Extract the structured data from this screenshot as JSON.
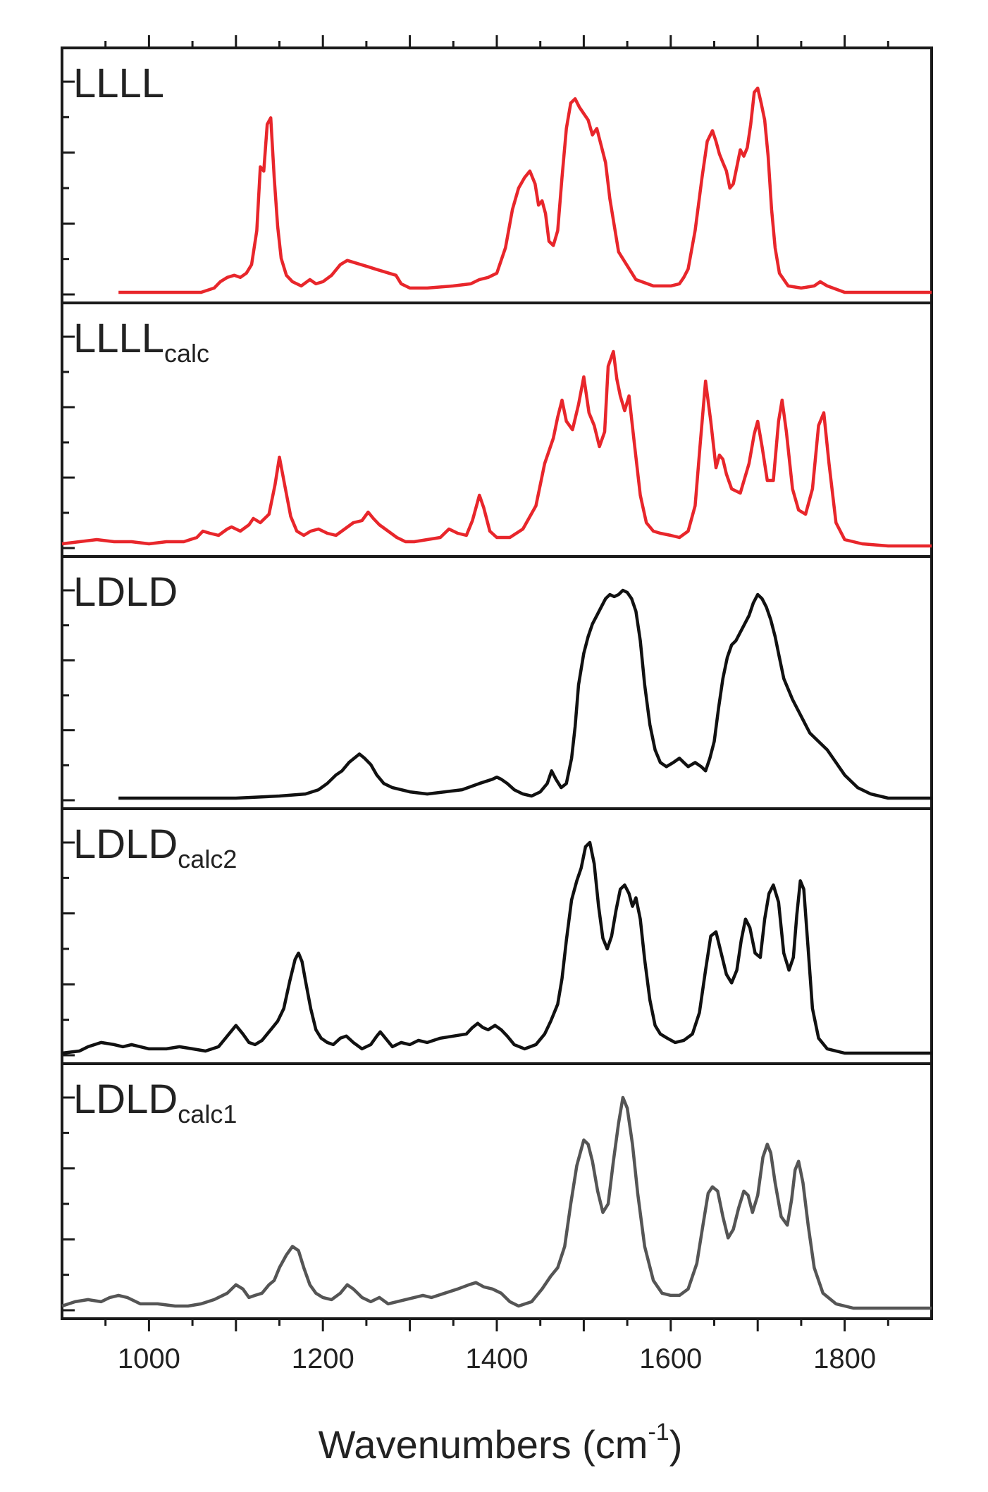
{
  "chart_data": {
    "type": "line",
    "xlabel": "Wavenumbers (cm",
    "xlabel_sup": "-1",
    "xlabel_close": ")",
    "xlim": [
      900,
      1900
    ],
    "xticks": [
      1000,
      1200,
      1400,
      1600,
      1800
    ],
    "xtick_labels": [
      "1000",
      "1200",
      "1400",
      "1600",
      "1800"
    ],
    "grid": false,
    "panels": [
      {
        "label": "LLLL",
        "sub": "",
        "color": "#e8262b",
        "ylim": [
          0,
          1
        ],
        "x": [
          965,
          1000,
          1060,
          1075,
          1082,
          1090,
          1098,
          1105,
          1112,
          1118,
          1124,
          1128,
          1132,
          1136,
          1140,
          1144,
          1148,
          1152,
          1158,
          1165,
          1175,
          1185,
          1192,
          1200,
          1210,
          1220,
          1228,
          1236,
          1244,
          1252,
          1260,
          1268,
          1276,
          1284,
          1290,
          1300,
          1320,
          1350,
          1370,
          1380,
          1390,
          1400,
          1410,
          1418,
          1425,
          1432,
          1438,
          1444,
          1448,
          1452,
          1456,
          1460,
          1465,
          1470,
          1475,
          1480,
          1485,
          1490,
          1495,
          1500,
          1505,
          1510,
          1515,
          1520,
          1525,
          1530,
          1540,
          1560,
          1580,
          1600,
          1610,
          1615,
          1620,
          1628,
          1636,
          1642,
          1648,
          1652,
          1656,
          1660,
          1664,
          1668,
          1672,
          1676,
          1680,
          1684,
          1688,
          1692,
          1696,
          1700,
          1704,
          1708,
          1712,
          1716,
          1720,
          1725,
          1735,
          1750,
          1765,
          1772,
          1780,
          1800,
          1900
        ],
        "y": [
          0.01,
          0.01,
          0.01,
          0.03,
          0.06,
          0.08,
          0.09,
          0.08,
          0.1,
          0.14,
          0.3,
          0.6,
          0.58,
          0.8,
          0.83,
          0.55,
          0.32,
          0.17,
          0.09,
          0.06,
          0.04,
          0.07,
          0.05,
          0.06,
          0.09,
          0.14,
          0.16,
          0.15,
          0.14,
          0.13,
          0.12,
          0.11,
          0.1,
          0.09,
          0.05,
          0.03,
          0.03,
          0.04,
          0.05,
          0.07,
          0.08,
          0.1,
          0.22,
          0.4,
          0.5,
          0.55,
          0.58,
          0.52,
          0.42,
          0.44,
          0.38,
          0.25,
          0.23,
          0.3,
          0.55,
          0.78,
          0.9,
          0.92,
          0.88,
          0.85,
          0.82,
          0.75,
          0.78,
          0.7,
          0.62,
          0.45,
          0.2,
          0.07,
          0.04,
          0.04,
          0.05,
          0.08,
          0.12,
          0.3,
          0.55,
          0.72,
          0.77,
          0.72,
          0.66,
          0.62,
          0.58,
          0.5,
          0.52,
          0.6,
          0.68,
          0.65,
          0.69,
          0.8,
          0.95,
          0.97,
          0.9,
          0.82,
          0.65,
          0.4,
          0.22,
          0.1,
          0.04,
          0.03,
          0.04,
          0.06,
          0.04,
          0.01,
          0.01
        ]
      },
      {
        "label": "LLLL",
        "sub": "calc",
        "color": "#e8262b",
        "ylim": [
          0,
          1
        ],
        "x": [
          900,
          920,
          940,
          960,
          980,
          1000,
          1020,
          1040,
          1055,
          1062,
          1070,
          1080,
          1090,
          1095,
          1105,
          1115,
          1120,
          1128,
          1138,
          1145,
          1150,
          1156,
          1163,
          1170,
          1178,
          1186,
          1195,
          1205,
          1215,
          1225,
          1235,
          1245,
          1252,
          1258,
          1265,
          1275,
          1285,
          1295,
          1305,
          1320,
          1335,
          1345,
          1355,
          1365,
          1372,
          1380,
          1385,
          1392,
          1400,
          1415,
          1430,
          1445,
          1455,
          1465,
          1470,
          1475,
          1480,
          1487,
          1494,
          1500,
          1506,
          1512,
          1518,
          1524,
          1528,
          1534,
          1538,
          1542,
          1547,
          1552,
          1558,
          1565,
          1572,
          1580,
          1588,
          1600,
          1610,
          1620,
          1628,
          1634,
          1640,
          1646,
          1652,
          1656,
          1660,
          1664,
          1670,
          1680,
          1690,
          1696,
          1700,
          1705,
          1711,
          1718,
          1724,
          1728,
          1733,
          1740,
          1747,
          1755,
          1763,
          1770,
          1776,
          1782,
          1790,
          1800,
          1820,
          1850,
          1900
        ],
        "y": [
          0.02,
          0.03,
          0.04,
          0.03,
          0.03,
          0.02,
          0.03,
          0.03,
          0.05,
          0.08,
          0.07,
          0.06,
          0.09,
          0.1,
          0.08,
          0.11,
          0.14,
          0.12,
          0.16,
          0.3,
          0.43,
          0.3,
          0.15,
          0.08,
          0.06,
          0.08,
          0.09,
          0.07,
          0.06,
          0.09,
          0.12,
          0.13,
          0.17,
          0.14,
          0.11,
          0.08,
          0.05,
          0.03,
          0.03,
          0.04,
          0.05,
          0.09,
          0.07,
          0.06,
          0.13,
          0.25,
          0.19,
          0.08,
          0.05,
          0.05,
          0.09,
          0.2,
          0.4,
          0.52,
          0.62,
          0.7,
          0.6,
          0.56,
          0.68,
          0.81,
          0.64,
          0.58,
          0.48,
          0.55,
          0.86,
          0.93,
          0.8,
          0.72,
          0.65,
          0.72,
          0.5,
          0.25,
          0.12,
          0.08,
          0.07,
          0.06,
          0.05,
          0.08,
          0.2,
          0.5,
          0.79,
          0.6,
          0.38,
          0.44,
          0.42,
          0.35,
          0.28,
          0.26,
          0.4,
          0.54,
          0.6,
          0.48,
          0.32,
          0.32,
          0.6,
          0.7,
          0.55,
          0.28,
          0.18,
          0.16,
          0.28,
          0.58,
          0.64,
          0.4,
          0.12,
          0.04,
          0.02,
          0.01,
          0.01
        ]
      },
      {
        "label": "LDLD",
        "sub": "",
        "color": "#111111",
        "ylim": [
          0,
          1
        ],
        "x": [
          965,
          1000,
          1050,
          1100,
          1150,
          1180,
          1195,
          1205,
          1215,
          1222,
          1230,
          1236,
          1242,
          1248,
          1255,
          1262,
          1270,
          1280,
          1290,
          1300,
          1320,
          1340,
          1360,
          1380,
          1395,
          1400,
          1405,
          1412,
          1420,
          1430,
          1440,
          1450,
          1458,
          1463,
          1468,
          1474,
          1480,
          1486,
          1490,
          1494,
          1500,
          1505,
          1510,
          1515,
          1520,
          1525,
          1530,
          1535,
          1540,
          1545,
          1550,
          1555,
          1560,
          1565,
          1570,
          1576,
          1582,
          1588,
          1595,
          1603,
          1610,
          1615,
          1620,
          1628,
          1635,
          1640,
          1645,
          1650,
          1655,
          1660,
          1665,
          1670,
          1675,
          1680,
          1685,
          1690,
          1695,
          1700,
          1705,
          1710,
          1715,
          1720,
          1725,
          1730,
          1740,
          1750,
          1760,
          1770,
          1780,
          1790,
          1800,
          1815,
          1830,
          1850,
          1900
        ],
        "y": [
          0.01,
          0.01,
          0.01,
          0.01,
          0.02,
          0.03,
          0.05,
          0.08,
          0.12,
          0.14,
          0.18,
          0.2,
          0.22,
          0.2,
          0.17,
          0.12,
          0.08,
          0.06,
          0.05,
          0.04,
          0.03,
          0.04,
          0.05,
          0.08,
          0.1,
          0.11,
          0.1,
          0.08,
          0.05,
          0.03,
          0.02,
          0.04,
          0.08,
          0.14,
          0.1,
          0.06,
          0.08,
          0.2,
          0.35,
          0.55,
          0.7,
          0.78,
          0.84,
          0.88,
          0.92,
          0.96,
          0.98,
          0.97,
          0.98,
          1.0,
          0.99,
          0.96,
          0.9,
          0.76,
          0.55,
          0.36,
          0.24,
          0.18,
          0.16,
          0.18,
          0.2,
          0.18,
          0.16,
          0.18,
          0.16,
          0.14,
          0.2,
          0.28,
          0.44,
          0.58,
          0.68,
          0.74,
          0.76,
          0.8,
          0.84,
          0.88,
          0.94,
          0.98,
          0.96,
          0.92,
          0.86,
          0.78,
          0.68,
          0.58,
          0.48,
          0.4,
          0.32,
          0.28,
          0.24,
          0.18,
          0.12,
          0.06,
          0.03,
          0.01,
          0.01
        ]
      },
      {
        "label": "LDLD",
        "sub": "calc2",
        "color": "#111111",
        "ylim": [
          0,
          1
        ],
        "x": [
          900,
          920,
          930,
          945,
          960,
          970,
          980,
          990,
          1000,
          1020,
          1035,
          1050,
          1065,
          1080,
          1092,
          1100,
          1108,
          1115,
          1122,
          1130,
          1140,
          1148,
          1155,
          1162,
          1168,
          1172,
          1176,
          1180,
          1186,
          1192,
          1198,
          1205,
          1212,
          1220,
          1227,
          1235,
          1245,
          1255,
          1262,
          1266,
          1272,
          1280,
          1290,
          1300,
          1310,
          1320,
          1335,
          1350,
          1365,
          1372,
          1378,
          1384,
          1390,
          1398,
          1405,
          1412,
          1420,
          1432,
          1445,
          1455,
          1462,
          1470,
          1475,
          1480,
          1486,
          1492,
          1497,
          1502,
          1507,
          1512,
          1517,
          1522,
          1527,
          1532,
          1537,
          1542,
          1547,
          1552,
          1556,
          1560,
          1565,
          1570,
          1576,
          1582,
          1588,
          1596,
          1605,
          1615,
          1625,
          1633,
          1640,
          1646,
          1652,
          1658,
          1664,
          1670,
          1676,
          1681,
          1686,
          1691,
          1697,
          1703,
          1708,
          1713,
          1718,
          1724,
          1730,
          1736,
          1741,
          1745,
          1749,
          1753,
          1758,
          1763,
          1770,
          1780,
          1800,
          1830,
          1900
        ],
        "y": [
          0.01,
          0.02,
          0.04,
          0.06,
          0.05,
          0.04,
          0.05,
          0.04,
          0.03,
          0.03,
          0.04,
          0.03,
          0.02,
          0.04,
          0.1,
          0.14,
          0.1,
          0.06,
          0.05,
          0.07,
          0.12,
          0.16,
          0.22,
          0.35,
          0.45,
          0.48,
          0.44,
          0.35,
          0.22,
          0.12,
          0.08,
          0.06,
          0.05,
          0.08,
          0.09,
          0.06,
          0.03,
          0.05,
          0.09,
          0.11,
          0.08,
          0.04,
          0.06,
          0.05,
          0.07,
          0.06,
          0.08,
          0.09,
          0.1,
          0.13,
          0.15,
          0.13,
          0.12,
          0.14,
          0.12,
          0.09,
          0.05,
          0.03,
          0.05,
          0.1,
          0.16,
          0.24,
          0.36,
          0.54,
          0.73,
          0.82,
          0.88,
          0.98,
          1.0,
          0.9,
          0.7,
          0.55,
          0.5,
          0.56,
          0.68,
          0.78,
          0.8,
          0.76,
          0.7,
          0.74,
          0.64,
          0.45,
          0.26,
          0.14,
          0.1,
          0.08,
          0.06,
          0.07,
          0.1,
          0.2,
          0.4,
          0.56,
          0.58,
          0.48,
          0.38,
          0.34,
          0.4,
          0.54,
          0.64,
          0.6,
          0.48,
          0.46,
          0.64,
          0.76,
          0.8,
          0.72,
          0.48,
          0.4,
          0.46,
          0.66,
          0.82,
          0.78,
          0.5,
          0.22,
          0.08,
          0.03,
          0.01,
          0.01,
          0.01
        ]
      },
      {
        "label": "LDLD",
        "sub": "calc1",
        "color": "#555555",
        "ylim": [
          0,
          1
        ],
        "x": [
          900,
          915,
          930,
          945,
          955,
          965,
          975,
          990,
          1010,
          1030,
          1045,
          1060,
          1075,
          1090,
          1100,
          1108,
          1115,
          1122,
          1130,
          1138,
          1144,
          1150,
          1158,
          1165,
          1172,
          1178,
          1185,
          1192,
          1200,
          1210,
          1220,
          1228,
          1235,
          1245,
          1255,
          1265,
          1275,
          1285,
          1295,
          1305,
          1315,
          1325,
          1340,
          1355,
          1368,
          1376,
          1385,
          1395,
          1405,
          1415,
          1425,
          1440,
          1452,
          1462,
          1470,
          1478,
          1485,
          1492,
          1500,
          1505,
          1510,
          1516,
          1522,
          1528,
          1534,
          1540,
          1545,
          1550,
          1556,
          1562,
          1570,
          1580,
          1590,
          1600,
          1610,
          1620,
          1630,
          1637,
          1643,
          1648,
          1654,
          1660,
          1666,
          1672,
          1678,
          1684,
          1689,
          1694,
          1700,
          1706,
          1711,
          1715,
          1720,
          1727,
          1734,
          1739,
          1743,
          1747,
          1752,
          1758,
          1765,
          1775,
          1790,
          1810,
          1840,
          1900
        ],
        "y": [
          0.02,
          0.04,
          0.05,
          0.04,
          0.06,
          0.07,
          0.06,
          0.03,
          0.03,
          0.02,
          0.02,
          0.03,
          0.05,
          0.08,
          0.12,
          0.1,
          0.06,
          0.07,
          0.08,
          0.12,
          0.14,
          0.2,
          0.26,
          0.3,
          0.28,
          0.2,
          0.12,
          0.08,
          0.06,
          0.05,
          0.08,
          0.12,
          0.1,
          0.06,
          0.04,
          0.06,
          0.03,
          0.04,
          0.05,
          0.06,
          0.07,
          0.06,
          0.08,
          0.1,
          0.12,
          0.13,
          0.11,
          0.1,
          0.08,
          0.04,
          0.02,
          0.04,
          0.1,
          0.16,
          0.2,
          0.3,
          0.5,
          0.68,
          0.8,
          0.78,
          0.7,
          0.56,
          0.46,
          0.5,
          0.7,
          0.88,
          1.0,
          0.95,
          0.78,
          0.55,
          0.3,
          0.14,
          0.08,
          0.07,
          0.07,
          0.1,
          0.22,
          0.4,
          0.55,
          0.58,
          0.56,
          0.44,
          0.34,
          0.38,
          0.48,
          0.56,
          0.54,
          0.46,
          0.54,
          0.72,
          0.78,
          0.74,
          0.6,
          0.44,
          0.4,
          0.52,
          0.66,
          0.7,
          0.6,
          0.4,
          0.2,
          0.08,
          0.03,
          0.01,
          0.01,
          0.01
        ]
      }
    ]
  }
}
